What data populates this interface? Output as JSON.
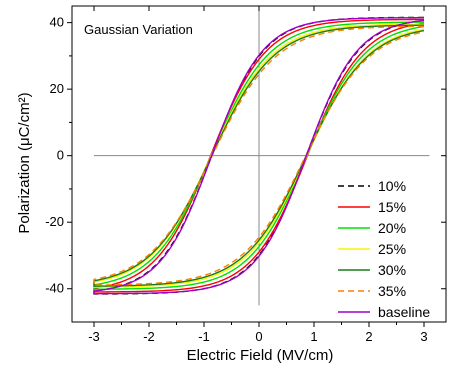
{
  "chart_data": {
    "type": "line",
    "title": "Gaussian Variation",
    "xlabel": "Electric Field (MV/cm)",
    "ylabel": "Polarization (μC/cm²)",
    "xlim": [
      -3.4,
      3.4
    ],
    "ylim": [
      -50,
      45
    ],
    "xticks": [
      -3,
      -2,
      -1,
      0,
      1,
      2,
      3
    ],
    "yticks": [
      -40,
      -20,
      0,
      20,
      40
    ],
    "grid": false,
    "zero_lines": true,
    "legend_position": "bottom-right",
    "model": {
      "Ps": 42,
      "Ec": 0.87,
      "w": 0.95,
      "descending_branch": "P(E) = Ps * tanh((E + Ec)/w)",
      "ascending_branch": "P(E) = Ps * tanh((E - Ec)/w)"
    },
    "series": [
      {
        "name": "10%",
        "color": "#000000",
        "dash": "6,4",
        "Ps": 41.6,
        "Ec": 0.86,
        "w": 0.95
      },
      {
        "name": "15%",
        "color": "#ff0000",
        "dash": "",
        "Ps": 41.0,
        "Ec": 0.88,
        "w": 1.0
      },
      {
        "name": "20%",
        "color": "#00e000",
        "dash": "",
        "Ps": 40.2,
        "Ec": 0.87,
        "w": 1.05
      },
      {
        "name": "25%",
        "color": "#f5f500",
        "dash": "",
        "Ps": 39.6,
        "Ec": 0.87,
        "w": 1.1
      },
      {
        "name": "30%",
        "color": "#1a7a1a",
        "dash": "",
        "Ps": 39.3,
        "Ec": 0.86,
        "w": 1.12
      },
      {
        "name": "35%",
        "color": "#ff7f00",
        "dash": "6,4",
        "Ps": 39.0,
        "Ec": 0.85,
        "w": 1.15
      },
      {
        "name": "baseline",
        "color": "#a000c8",
        "dash": "",
        "Ps": 41.5,
        "Ec": 0.86,
        "w": 0.93
      }
    ]
  }
}
